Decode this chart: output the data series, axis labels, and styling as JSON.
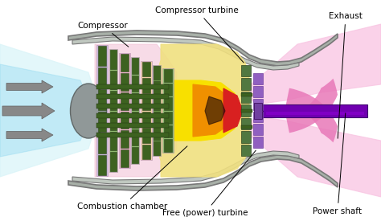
{
  "bg_color": "#ffffff",
  "labels": {
    "compressor": "Compressor",
    "compressor_turbine": "Compressor turbine",
    "combustion_chamber": "Combustion chamber",
    "free_turbine": "Free (power) turbine",
    "exhaust": "Exhaust",
    "power_shaft": "Power shaft"
  },
  "colors": {
    "outer_shell": "#a8b0a8",
    "outer_shell_edge": "#787878",
    "inner_duct": "#c0c8c0",
    "intake_cyan_light": "#d8f4f8",
    "intake_cyan": "#90d8f0",
    "exhaust_pink_light": "#f8c0e0",
    "exhaust_pink": "#e878b8",
    "exhaust_arrow": "#c870b0",
    "compressor_green_light": "#90b870",
    "compressor_green_mid": "#6a9448",
    "compressor_green_dark": "#3d6220",
    "compressor_pink": "#f0b8d0",
    "compressor_lavender": "#c8b8d8",
    "compressor_peach": "#f0d0a8",
    "combustion_yellow": "#f8e000",
    "combustion_orange": "#f09000",
    "combustion_red": "#d82020",
    "combustion_dark": "#1a0808",
    "turbine_blade_green": "#507840",
    "turbine_blade_dark": "#304820",
    "free_turbine_purple": "#7040a0",
    "free_turbine_light": "#9060c0",
    "power_shaft_purple": "#7000b0",
    "power_shaft_light": "#9000d8",
    "shaft_gray": "#909090",
    "arrow_gray": "#888888",
    "nose_gray": "#909898",
    "nose_edge": "#606868"
  }
}
